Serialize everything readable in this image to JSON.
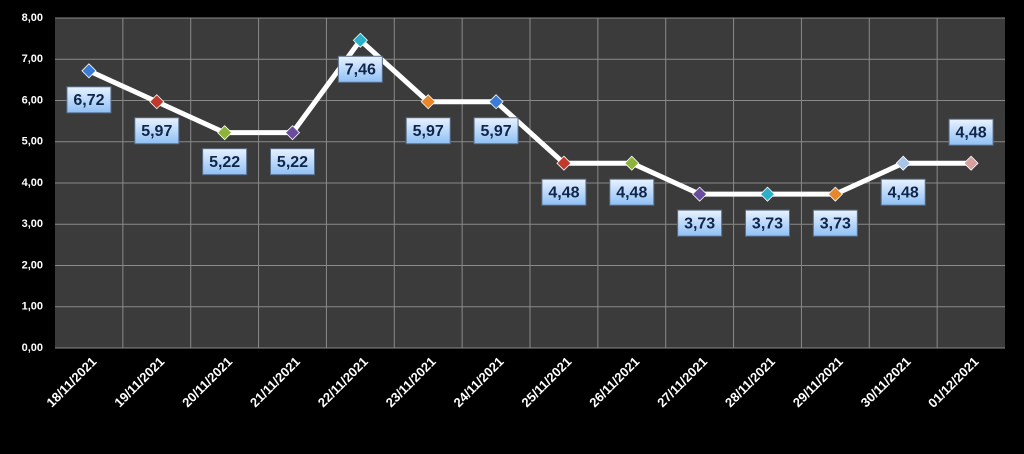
{
  "chart_data": {
    "type": "line",
    "categories": [
      "18/11/2021",
      "19/11/2021",
      "20/11/2021",
      "21/11/2021",
      "22/11/2021",
      "23/11/2021",
      "24/11/2021",
      "25/11/2021",
      "26/11/2021",
      "27/11/2021",
      "28/11/2021",
      "29/11/2021",
      "30/11/2021",
      "01/12/2021"
    ],
    "values": [
      6.72,
      5.97,
      5.22,
      5.22,
      7.46,
      5.97,
      5.97,
      4.48,
      4.48,
      3.73,
      3.73,
      3.73,
      4.48,
      4.48
    ],
    "value_labels": [
      "6,72",
      "5,97",
      "5,22",
      "5,22",
      "7,46",
      "5,97",
      "5,97",
      "4,48",
      "4,48",
      "3,73",
      "3,73",
      "3,73",
      "4,48",
      "4,48"
    ],
    "color": "#ffffff",
    "marker_colors": [
      "#3a7bd5",
      "#c0392b",
      "#8db33a",
      "#6a4c9c",
      "#2bb0c8",
      "#e8862a",
      "#3a7bd5",
      "#c0392b",
      "#8db33a",
      "#6a4c9c",
      "#2bb0c8",
      "#e8862a",
      "#a8c4e8",
      "#d9a0a0"
    ],
    "ylim": [
      0,
      8
    ],
    "yticks": [
      {
        "value": 0,
        "label": "0,00"
      },
      {
        "value": 1,
        "label": "1,00"
      },
      {
        "value": 2,
        "label": "2,00"
      },
      {
        "value": 3,
        "label": "3,00"
      },
      {
        "value": 4,
        "label": "4,00"
      },
      {
        "value": 5,
        "label": "5,00"
      },
      {
        "value": 6,
        "label": "6,00"
      },
      {
        "value": 7,
        "label": "7,00"
      },
      {
        "value": 8,
        "label": "8,00"
      }
    ],
    "grid": true
  }
}
